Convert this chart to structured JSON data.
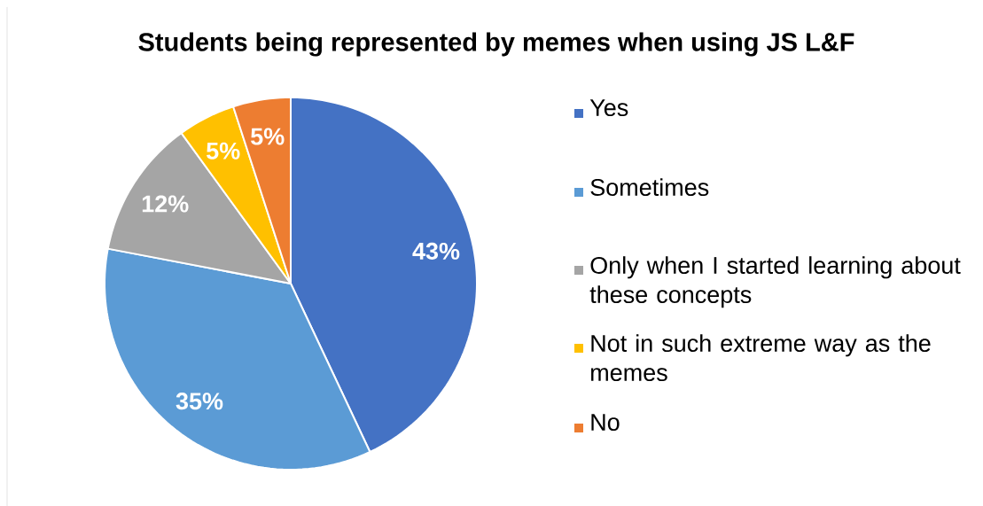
{
  "chart_data": {
    "type": "pie",
    "title": "Students being represented by memes when using JS L&F",
    "categories": [
      "Yes",
      "Sometimes",
      "Only when I started learning about these concepts",
      "Not in such extreme way as the memes",
      "No"
    ],
    "values": [
      43,
      35,
      12,
      5,
      5
    ],
    "value_labels": [
      "43%",
      "35%",
      "12%",
      "5%",
      "5%"
    ],
    "colors": [
      "#4472c4",
      "#5b9bd5",
      "#a5a5a5",
      "#ffc000",
      "#ed7d31"
    ],
    "legend": "right"
  }
}
